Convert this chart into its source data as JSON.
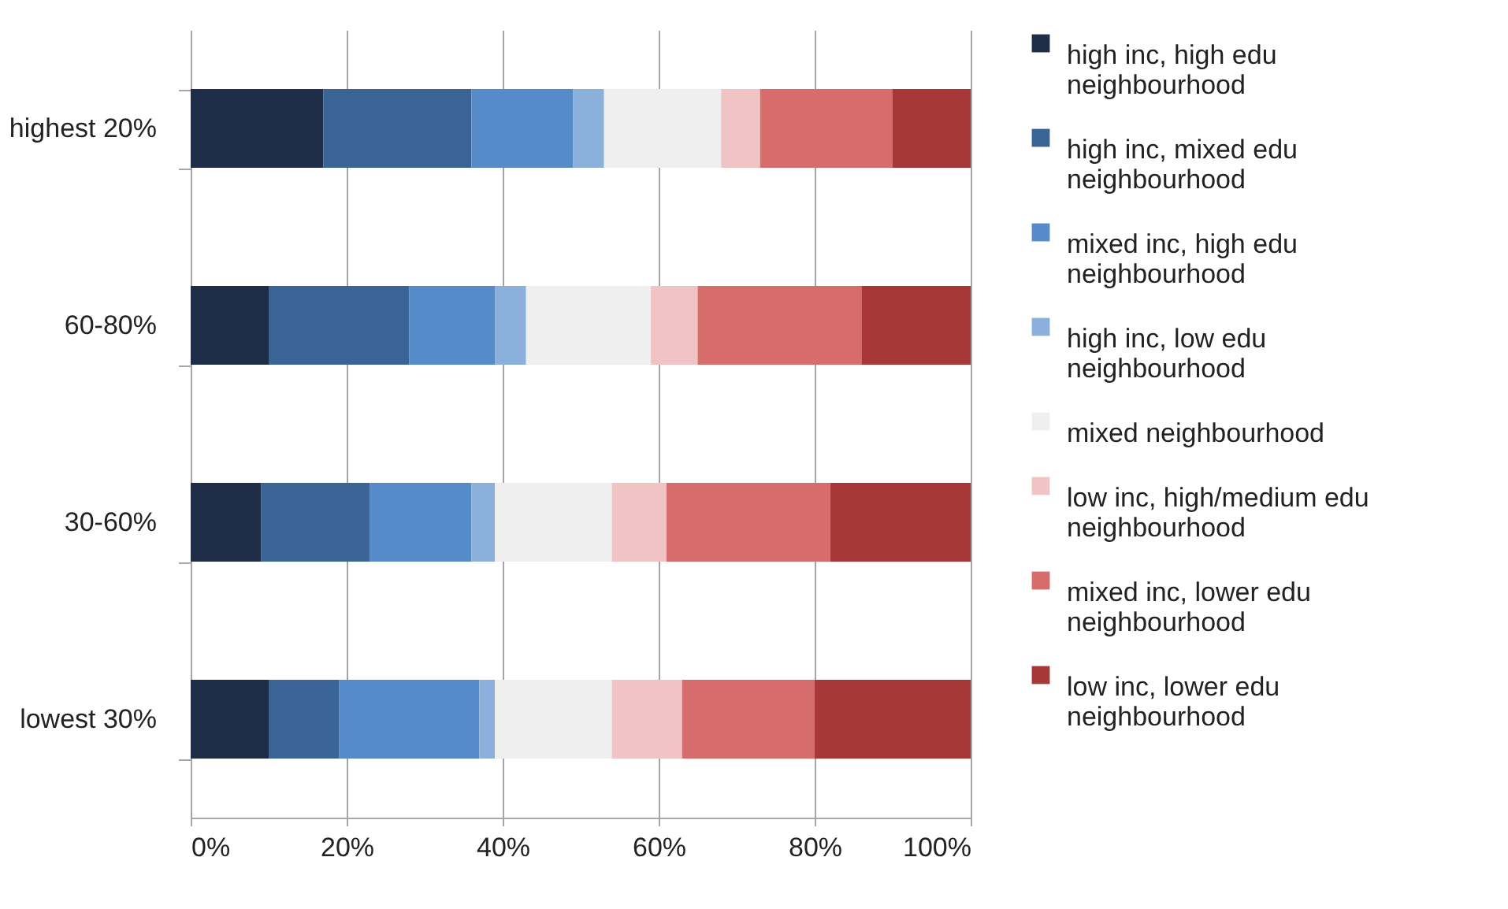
{
  "chart_data": {
    "type": "bar",
    "orientation": "horizontal",
    "stacked": true,
    "categories": [
      "highest 20%",
      "60-80%",
      "30-60%",
      "lowest 30%"
    ],
    "series": [
      {
        "name": "high inc, high edu neighbourhood",
        "color": "#1f2d48",
        "values": [
          17,
          10,
          9,
          10
        ]
      },
      {
        "name": "high inc, mixed edu neighbourhood",
        "color": "#3a6496",
        "values": [
          19,
          18,
          14,
          9
        ]
      },
      {
        "name": "mixed inc, high edu neighbourhood",
        "color": "#558bc8",
        "values": [
          13,
          11,
          13,
          18
        ]
      },
      {
        "name": "high inc, low edu neighbourhood",
        "color": "#8cb0dc",
        "values": [
          4,
          4,
          3,
          2
        ]
      },
      {
        "name": "mixed neighbourhood",
        "color": "#efefef",
        "values": [
          15,
          16,
          15,
          15
        ]
      },
      {
        "name": "low inc, high/medium edu neighbourhood",
        "color": "#f0c4c4",
        "values": [
          5,
          6,
          7,
          9
        ]
      },
      {
        "name": "mixed inc, lower edu neighbourhood",
        "color": "#d66c6c",
        "values": [
          17,
          21,
          21,
          17
        ]
      },
      {
        "name": "low inc, lower edu neighbourhood",
        "color": "#a83838",
        "values": [
          10,
          14,
          18,
          20
        ]
      }
    ],
    "xlim": [
      0,
      100
    ],
    "xticks": [
      {
        "value": 0,
        "label": "0%"
      },
      {
        "value": 20,
        "label": "20%"
      },
      {
        "value": 40,
        "label": "40%"
      },
      {
        "value": 60,
        "label": "60%"
      },
      {
        "value": 80,
        "label": "80%"
      },
      {
        "value": 100,
        "label": "100%"
      }
    ],
    "grid": "x",
    "legend": "right"
  }
}
